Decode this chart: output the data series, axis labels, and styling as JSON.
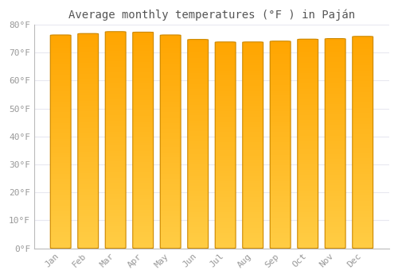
{
  "title": "Average monthly temperatures (°F ) in Paján",
  "months": [
    "Jan",
    "Feb",
    "Mar",
    "Apr",
    "May",
    "Jun",
    "Jul",
    "Aug",
    "Sep",
    "Oct",
    "Nov",
    "Dec"
  ],
  "values": [
    76.3,
    76.8,
    77.5,
    77.3,
    76.3,
    74.7,
    73.8,
    73.8,
    74.1,
    74.8,
    75.0,
    75.8
  ],
  "bar_color_top": "#FFA500",
  "bar_color_bottom": "#FFCC44",
  "bar_edge_color": "#CC8800",
  "background_color": "#FFFFFF",
  "grid_color": "#E8E8F0",
  "text_color": "#999999",
  "title_color": "#555555",
  "ylim": [
    0,
    80
  ],
  "yticks": [
    0,
    10,
    20,
    30,
    40,
    50,
    60,
    70,
    80
  ],
  "title_fontsize": 10,
  "tick_fontsize": 8
}
